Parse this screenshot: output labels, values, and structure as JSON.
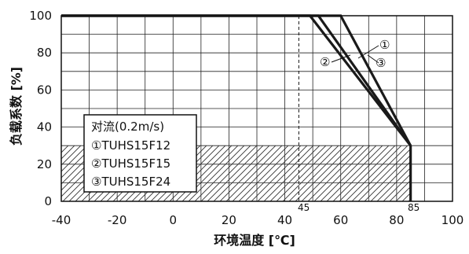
{
  "chart_data": {
    "type": "line",
    "xlabel": "环境温度 [℃]",
    "ylabel": "负载系数 [%]",
    "xlim": [
      -40,
      100
    ],
    "ylim": [
      0,
      100
    ],
    "x_ticks": [
      "-40",
      "-20",
      "0",
      "20",
      "40",
      "60",
      "80",
      "100"
    ],
    "y_ticks": [
      "0",
      "20",
      "40",
      "60",
      "80",
      "100"
    ],
    "x_tick_values": [
      -40,
      -20,
      0,
      20,
      40,
      60,
      80,
      100
    ],
    "y_tick_values": [
      0,
      20,
      40,
      60,
      80,
      100
    ],
    "grid": true,
    "shaded_region": {
      "y_max": 30,
      "x_min": -40,
      "x_max": 85
    },
    "reference_line": {
      "x": 45,
      "label": "45"
    },
    "end_marker": {
      "x": 85,
      "label": "85"
    },
    "series": [
      {
        "marker": "①",
        "points": [
          [
            -40,
            100
          ],
          [
            52,
            100
          ],
          [
            85,
            30
          ]
        ]
      },
      {
        "marker": "②",
        "points": [
          [
            -40,
            100
          ],
          [
            49,
            100
          ],
          [
            85,
            30
          ]
        ]
      },
      {
        "marker": "③",
        "points": [
          [
            -40,
            100
          ],
          [
            60,
            100
          ],
          [
            85,
            30
          ]
        ]
      }
    ],
    "legend": {
      "title": "对流(0.2m/s)",
      "items": [
        "①TUHS15F12",
        "②TUHS15F15",
        "③TUHS15F24"
      ],
      "position": "bottom-left"
    },
    "annotations": [
      {
        "text": "①",
        "series": 0
      },
      {
        "text": "②",
        "series": 1
      },
      {
        "text": "③",
        "series": 2
      }
    ]
  }
}
